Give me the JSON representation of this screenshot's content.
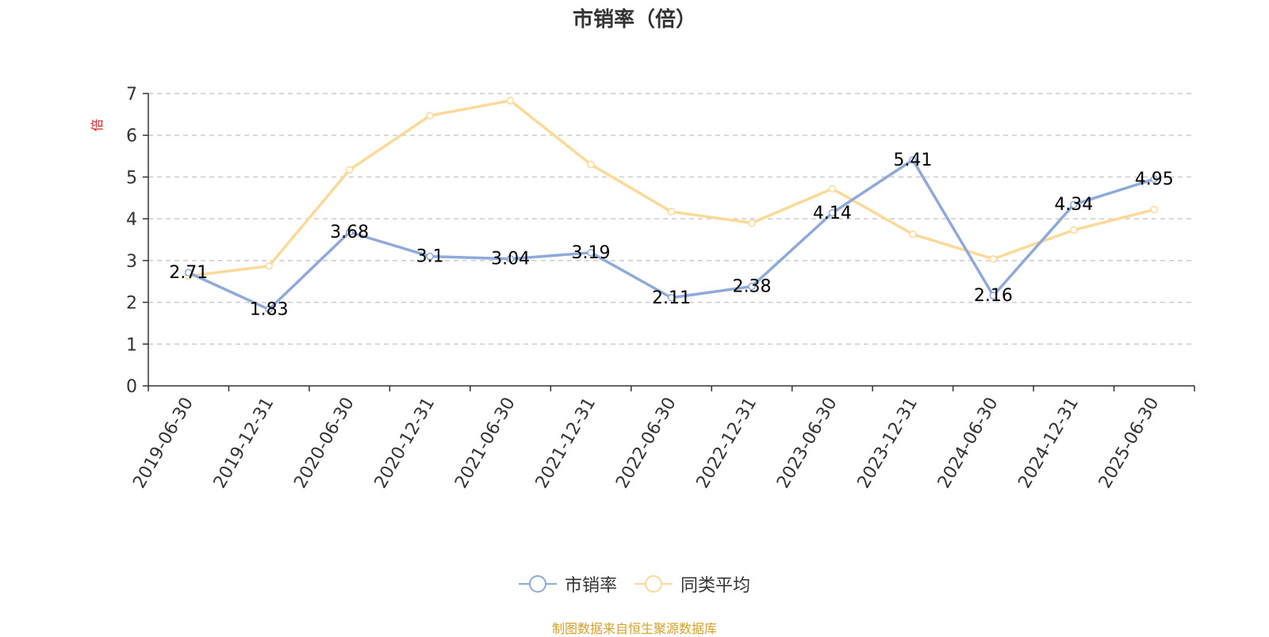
{
  "chart_data": {
    "type": "line",
    "title": "市销率（倍）",
    "ylabel": "倍",
    "xlabel": "",
    "ylim": [
      0,
      7
    ],
    "yticks": [
      0,
      1,
      2,
      3,
      4,
      5,
      6,
      7
    ],
    "grid": true,
    "legend_position": "bottom-center",
    "categories": [
      "2019-06-30",
      "2019-12-31",
      "2020-06-30",
      "2020-12-31",
      "2021-06-30",
      "2021-12-31",
      "2022-06-30",
      "2022-12-31",
      "2023-06-30",
      "2023-12-31",
      "2024-06-30",
      "2024-12-31",
      "2025-06-30"
    ],
    "series": [
      {
        "name": "市销率",
        "color": "#8eaadb",
        "values": [
          2.71,
          1.83,
          3.68,
          3.1,
          3.04,
          3.19,
          2.11,
          2.38,
          4.14,
          5.41,
          2.16,
          4.34,
          4.95
        ],
        "labels": [
          "2.71",
          "1.83",
          "3.68",
          "3.1",
          "3.04",
          "3.19",
          "2.11",
          "2.38",
          "4.14",
          "5.41",
          "2.16",
          "4.34",
          "4.95"
        ]
      },
      {
        "name": "同类平均",
        "color": "#fdd998",
        "values": [
          2.63,
          2.87,
          5.17,
          6.47,
          6.83,
          5.3,
          4.17,
          3.9,
          4.72,
          3.63,
          3.04,
          3.73,
          4.22
        ]
      }
    ]
  },
  "legend": [
    "市销率",
    "同类平均"
  ],
  "source_text": "制图数据来自恒生聚源数据库",
  "colors": {
    "axis": "#333333",
    "grid": "#cccccc",
    "ylabel": "#e02020",
    "source": "#d4a12a"
  }
}
